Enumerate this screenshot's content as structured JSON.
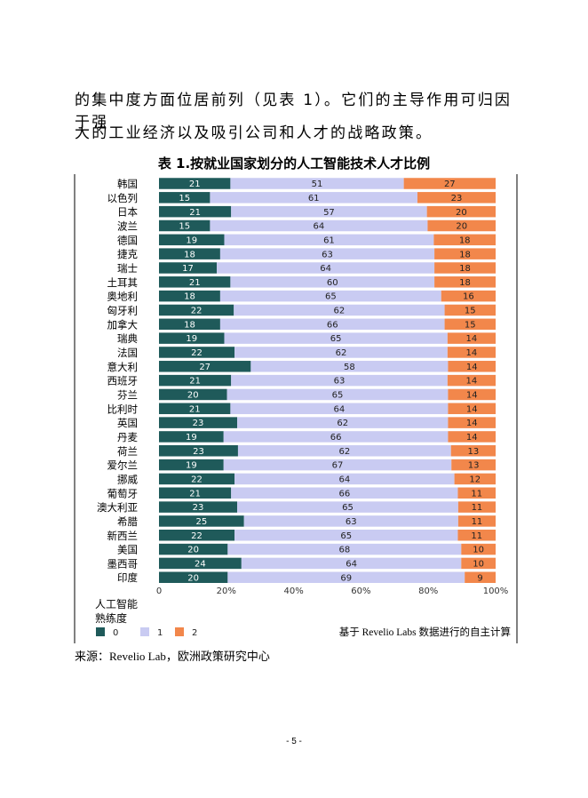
{
  "text": {
    "para_line1": "的集中度方面位居前列（见表 1）。它们的主导作用可归因于强",
    "para_line2": "大的工业经济以及吸引公司和人才的战略政策。",
    "caption": "表 1.按就业国家划分的人工智能技术人才比例",
    "source": "来源：Revelio Lab，欧洲政策研究中心",
    "page_number": "- 5 -"
  },
  "colors": {
    "level0": "#1f5a5a",
    "level1": "#c9cbf2",
    "level2": "#f2874b",
    "axis": "#333333"
  },
  "chart_data": {
    "type": "bar",
    "orientation": "horizontal",
    "stacked": true,
    "categories": [
      "韩国",
      "以色列",
      "日本",
      "波兰",
      "德国",
      "捷克",
      "瑞士",
      "土耳其",
      "奥地利",
      "匈牙利",
      "加拿大",
      "瑞典",
      "法国",
      "意大利",
      "西班牙",
      "芬兰",
      "比利时",
      "英国",
      "丹麦",
      "荷兰",
      "爱尔兰",
      "挪威",
      "葡萄牙",
      "澳大利亚",
      "希腊",
      "新西兰",
      "美国",
      "墨西哥",
      "印度"
    ],
    "series": [
      {
        "name": "0",
        "values": [
          21,
          15,
          21,
          15,
          19,
          18,
          17,
          21,
          18,
          22,
          18,
          19,
          22,
          27,
          21,
          20,
          21,
          23,
          19,
          23,
          19,
          22,
          21,
          23,
          25,
          22,
          20,
          24,
          20
        ]
      },
      {
        "name": "1",
        "values": [
          51,
          61,
          57,
          64,
          61,
          63,
          64,
          60,
          65,
          62,
          66,
          65,
          62,
          58,
          63,
          65,
          64,
          62,
          66,
          62,
          67,
          64,
          66,
          65,
          63,
          65,
          68,
          64,
          69
        ]
      },
      {
        "name": "2",
        "values": [
          27,
          23,
          20,
          20,
          18,
          18,
          18,
          18,
          16,
          15,
          15,
          14,
          14,
          14,
          14,
          14,
          14,
          14,
          14,
          13,
          13,
          12,
          11,
          11,
          11,
          11,
          10,
          10,
          9
        ]
      }
    ],
    "xlim": [
      0,
      100
    ],
    "x_ticks": [
      "0",
      "20%",
      "40%",
      "60%",
      "80%",
      "100%"
    ],
    "legend_title_line1": "人工智能",
    "legend_title_line2": "熟练度",
    "legend_labels": [
      "0",
      "1",
      "2"
    ],
    "note": "基于 Revelio Labs 数据进行的自主计算"
  }
}
